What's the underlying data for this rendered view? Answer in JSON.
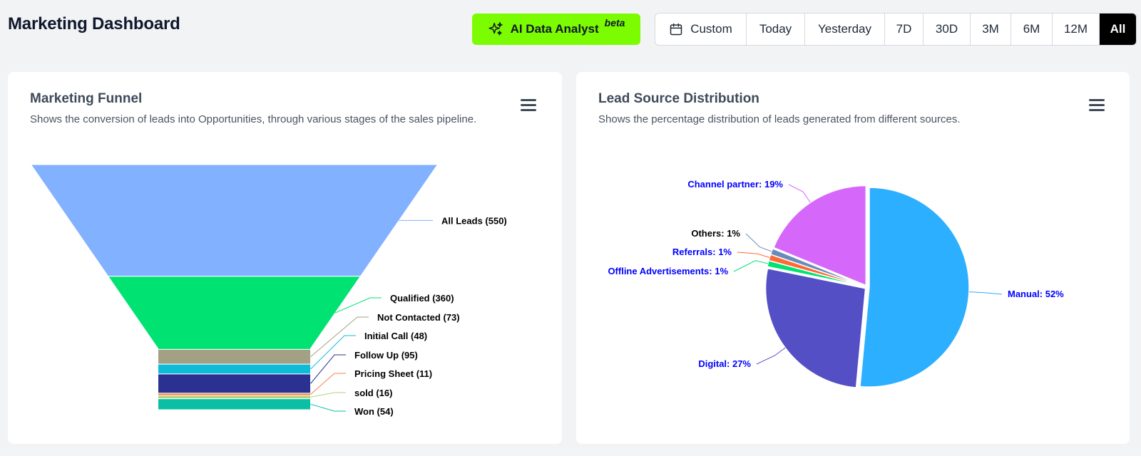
{
  "header": {
    "title": "Marketing Dashboard",
    "ai_button": {
      "label": "AI Data Analyst",
      "badge": "beta",
      "color": "#7cfc00"
    },
    "date_ranges": [
      {
        "label": "Custom",
        "icon": "calendar-icon",
        "active": false
      },
      {
        "label": "Today",
        "active": false
      },
      {
        "label": "Yesterday",
        "active": false
      },
      {
        "label": "7D",
        "active": false
      },
      {
        "label": "30D",
        "active": false
      },
      {
        "label": "3M",
        "active": false
      },
      {
        "label": "6M",
        "active": false
      },
      {
        "label": "12M",
        "active": false
      },
      {
        "label": "All",
        "active": true
      }
    ]
  },
  "cards": {
    "funnel": {
      "title": "Marketing Funnel",
      "subtitle": "Shows the conversion of leads into Opportunities, through various stages of the sales pipeline.",
      "menu_icon": "hamburger-menu-icon"
    },
    "pie": {
      "title": "Lead Source Distribution",
      "subtitle": "Shows the percentage distribution of leads generated from different sources.",
      "menu_icon": "hamburger-menu-icon"
    }
  },
  "chart_data": [
    {
      "type": "funnel",
      "categories": [
        "All Leads",
        "Qualified",
        "Not Contacted",
        "Initial Call",
        "Follow Up",
        "Pricing Sheet",
        "sold",
        "Won"
      ],
      "values": [
        550,
        360,
        73,
        48,
        95,
        11,
        16,
        54
      ],
      "labels": [
        "All Leads (550)",
        "Qualified (360)",
        "Not Contacted (73)",
        "Initial Call (48)",
        "Follow Up (95)",
        "Pricing Sheet (11)",
        "sold (16)",
        "Won (54)"
      ],
      "colors": [
        "#82b1ff",
        "#00e272",
        "#a3a183",
        "#0fbcd8",
        "#2a3190",
        "#fa8045",
        "#b2d37c",
        "#0abfa3"
      ]
    },
    {
      "type": "pie",
      "categories": [
        "Manual",
        "Digital",
        "Offline Advertisements",
        "Referrals",
        "Others",
        "Channel partner"
      ],
      "values": [
        52,
        27,
        1,
        1,
        1,
        19
      ],
      "labels": [
        "Manual: 52%",
        "Digital: 27%",
        "Offline Advertisements: 1%",
        "Referrals: 1%",
        "Others: 1%",
        "Channel partner: 19%"
      ],
      "colors": [
        "#2caffe",
        "#544fc5",
        "#00e272",
        "#fe6a35",
        "#6b8abc",
        "#d568fb"
      ],
      "label_colors": [
        "#0000ff",
        "#0000ff",
        "#0000ff",
        "#0000ff",
        "#000000",
        "#0000ff"
      ]
    }
  ]
}
